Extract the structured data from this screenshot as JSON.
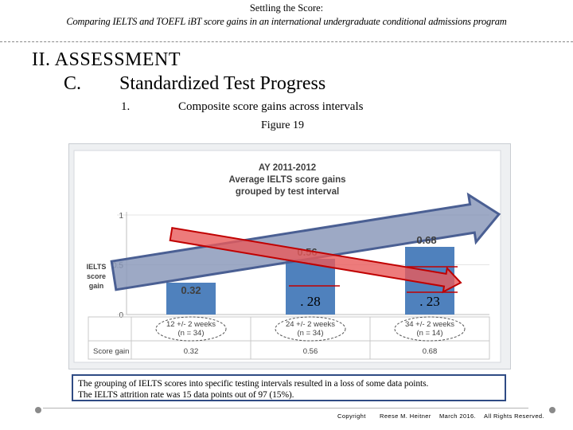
{
  "header": {
    "title": "Settling the Score:",
    "subtitle": "Comparing IELTS and TOEFL iBT score gains in an international undergraduate conditional admissions program"
  },
  "outline": {
    "section": "II.  ASSESSMENT",
    "subsection_letter": "C.",
    "subsection_title": "Standardized Test Progress",
    "item_number": "1.",
    "item_text": "Composite score gains across intervals",
    "figure_label": "Figure 19"
  },
  "chart_data": {
    "type": "bar",
    "title_lines": [
      "AY 2011-2012",
      "Average IELTS score gains",
      "grouped by test interval"
    ],
    "ylabel_lines": [
      "IELTS",
      "score",
      "gain"
    ],
    "yticks": [
      {
        "value": 0,
        "label": "0"
      },
      {
        "value": 0.5,
        "label": "0.5"
      },
      {
        "value": 1,
        "label": "1"
      }
    ],
    "ylim": [
      0,
      1
    ],
    "categories": [
      [
        "12 +/- 2 weeks",
        "(n = 34)"
      ],
      [
        "24 +/- 2 weeks",
        "(n = 34)"
      ],
      [
        "34 +/- 2 weeks",
        "(n = 14)"
      ]
    ],
    "values": [
      0.32,
      0.56,
      0.68
    ],
    "value_labels": [
      "0.32",
      "0.56",
      "0.68"
    ],
    "table_row_label": "Score gain",
    "table_values": [
      "0.32",
      "0.56",
      "0.68"
    ],
    "annotations": [
      {
        "category_index": 1,
        "text": ". 28"
      },
      {
        "category_index": 2,
        "text": ". 23"
      }
    ],
    "colors": {
      "bar": "#4f81bd",
      "up_arrow_fill": "#8796b8",
      "up_arrow_stroke": "#4a5f93",
      "down_arrow_fill": "#e85a5a",
      "down_arrow_stroke": "#c00000",
      "annotation_line": "#c00000"
    }
  },
  "caption": {
    "line1": "The grouping of IELTS scores into specific testing intervals resulted in a loss of some data points.",
    "line2": "The IELTS attrition rate was 15 data points out of 97 (15%)."
  },
  "footer": {
    "copyright": "Copyright",
    "author": "Reese M. Heitner",
    "date": "March 2016.",
    "rights": "All Rights Reserved."
  }
}
